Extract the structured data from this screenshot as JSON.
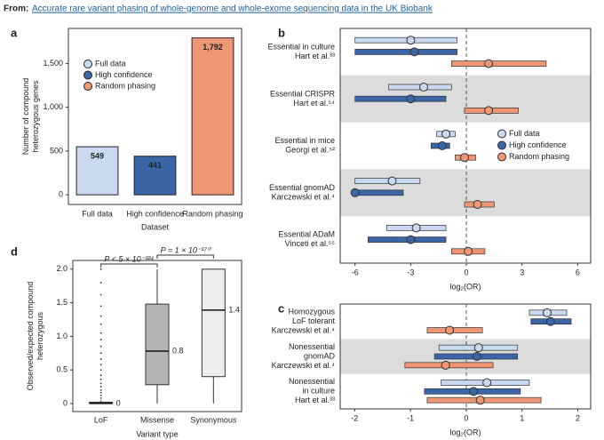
{
  "header": {
    "prefix": "From:",
    "link": "Accurate rare variant phasing of whole-genome and whole-exome sequencing data in the UK Biobank"
  },
  "chart_data": [
    {
      "type": "bar",
      "panel": "a",
      "categories": [
        "Full data",
        "High confidence",
        "Random phasing"
      ],
      "values": [
        549,
        441,
        1792
      ],
      "value_labels": [
        "549",
        "441",
        "1,792"
      ],
      "colors": [
        "#c9daf0",
        "#3a66a8",
        "#ef9676"
      ],
      "ylabel": [
        "Number of compound",
        "heterozygous genes"
      ],
      "xlabel": "Dataset",
      "ylim": [
        -110,
        1900
      ],
      "yticks": [
        0,
        500,
        {
          "value": 1000,
          "label": "1,000"
        },
        {
          "value": 1500,
          "label": "1,500"
        }
      ],
      "legend": true
    },
    {
      "type": "forest",
      "panel": "b",
      "categories": [
        [
          "Essential in culture",
          "Hart et al.³³"
        ],
        [
          "Essential CRISPR",
          "Hart  et al.⁵⁴"
        ],
        [
          "Essential in mice",
          "Georgi et al.⁵²"
        ],
        [
          "Essential gnomAD",
          "Karczewski et al.⁴"
        ],
        [
          "Essential ADaM",
          "Vinceti et al.⁵⁵"
        ]
      ],
      "shaded": [
        false,
        true,
        false,
        true,
        false
      ],
      "series": [
        {
          "name": "Full data",
          "color": "#c9daf0",
          "values": [
            -3.0,
            -2.3,
            -1.1,
            -4.0,
            -2.7
          ],
          "lower": [
            -6.0,
            -4.2,
            -1.6,
            -6.0,
            -4.3
          ],
          "upper": [
            -0.5,
            -0.8,
            -0.6,
            -2.5,
            -1.1
          ]
        },
        {
          "name": "High confidence",
          "color": "#3a66a8",
          "values": [
            -2.8,
            -3.0,
            -1.3,
            -6.0,
            -3.0
          ],
          "lower": [
            -6.0,
            -6.0,
            -1.9,
            -6.1,
            -5.3
          ],
          "upper": [
            -0.5,
            -1.1,
            -0.9,
            -3.4,
            -1.1
          ]
        },
        {
          "name": "Random phasing",
          "color": "#ef9676",
          "values": [
            1.2,
            1.2,
            -0.1,
            0.6,
            0.1
          ],
          "lower": [
            -0.8,
            -0.1,
            -0.6,
            -0.1,
            -0.8
          ],
          "upper": [
            4.3,
            2.8,
            0.5,
            1.5,
            1.0
          ]
        }
      ],
      "xlabel": "log₂(OR)",
      "xlim": [
        -6.8,
        6.7
      ],
      "xticks": [
        -6,
        -3,
        0,
        3,
        6
      ],
      "legend": true
    },
    {
      "type": "forest",
      "panel": "c",
      "categories": [
        [
          "Homozygous",
          "LoF tolerant",
          "Karczewski et al.⁴"
        ],
        [
          "Nonessential",
          "gnomAD",
          "Karczewski et al.⁴"
        ],
        [
          "Nonessential",
          "in culture",
          "Hart et al.³³"
        ]
      ],
      "shaded": [
        false,
        true,
        false
      ],
      "series": [
        {
          "color": "#c9daf0",
          "values": [
            1.45,
            0.22,
            0.37
          ],
          "lower": [
            1.13,
            -0.49,
            -0.45
          ],
          "upper": [
            1.8,
            0.92,
            1.13
          ]
        },
        {
          "color": "#3a66a8",
          "values": [
            1.51,
            0.19,
            0.13
          ],
          "lower": [
            1.16,
            -0.57,
            -0.75
          ],
          "upper": [
            1.88,
            0.92,
            0.97
          ]
        },
        {
          "color": "#ef9676",
          "values": [
            -0.3,
            -0.37,
            0.25
          ],
          "lower": [
            -0.7,
            -1.1,
            -0.7
          ],
          "upper": [
            0.29,
            0.48,
            1.34
          ]
        }
      ],
      "xlabel": "log₂(OR)",
      "xlim": [
        -2.26,
        2.23
      ],
      "xticks": [
        -2,
        -1,
        0,
        1,
        2
      ],
      "legend": false
    },
    {
      "type": "box",
      "panel": "d",
      "categories": [
        "LoF",
        "Missense",
        "Synonymous"
      ],
      "boxes": [
        {
          "color": "#555555",
          "whisker_low": 0,
          "q1": 0,
          "median": 0,
          "q3": 0.02,
          "whisker_high": 0.05,
          "median_label": "0",
          "outliers": [
            0.08,
            0.12,
            0.16,
            0.2,
            0.25,
            0.3,
            0.36,
            0.42,
            0.5,
            0.58,
            0.66,
            0.75,
            0.85,
            0.95,
            1.05,
            1.18,
            1.3,
            1.45,
            1.62,
            1.8,
            2.0
          ]
        },
        {
          "color": "#b5b5b5",
          "whisker_low": 0,
          "q1": 0.28,
          "median": 0.78,
          "q3": 1.48,
          "whisker_high": 2.0,
          "median_label": "0.8",
          "outliers": []
        },
        {
          "color": "#eeeeee",
          "whisker_low": 0,
          "q1": 0.4,
          "median": 1.39,
          "q3": 2.0,
          "whisker_high": 2.0,
          "median_label": "1.4",
          "outliers": []
        }
      ],
      "annotations": [
        "P < 5 × 10⁻³²⁴",
        "P = 1 × 10⁻¹⁷⁰"
      ],
      "ylabel": [
        "Observed/expected compound",
        "heterozygous"
      ],
      "xlabel": "Variant type",
      "ylim": [
        -0.12,
        2.13
      ],
      "yticks": [
        0,
        0.5,
        {
          "value": 1.0,
          "label": "1.0"
        },
        1.5,
        {
          "value": 2.0,
          "label": "2.0"
        }
      ]
    }
  ]
}
